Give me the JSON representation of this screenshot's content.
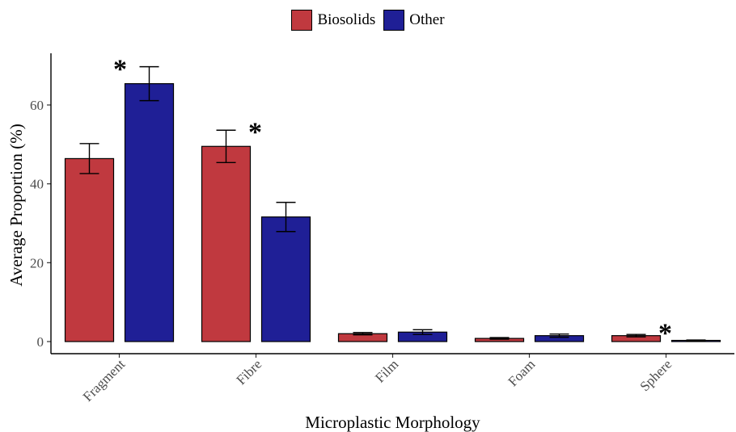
{
  "chart_data": {
    "type": "bar",
    "title": "",
    "xlabel": "Microplastic Morphology",
    "ylabel": "Average Proportion (%)",
    "ylim": [
      0,
      72
    ],
    "yticks": [
      0,
      20,
      40,
      60
    ],
    "grid": false,
    "legend_position": "top-center",
    "categories": [
      "Fragment",
      "Fibre",
      "Film",
      "Foam",
      "Sphere"
    ],
    "series": [
      {
        "name": "Biosolids",
        "color": "#c0393f",
        "values": [
          46.4,
          49.5,
          2.0,
          0.8,
          1.5
        ],
        "error": [
          3.8,
          4.1,
          0.3,
          0.2,
          0.3
        ]
      },
      {
        "name": "Other",
        "color": "#1f1f96",
        "values": [
          65.4,
          31.6,
          2.4,
          1.5,
          0.3
        ],
        "error": [
          4.3,
          3.7,
          0.6,
          0.4,
          0.1
        ]
      }
    ],
    "annotations": [
      {
        "text": "*",
        "category": "Fragment",
        "series": "Other",
        "y": 70.5,
        "side": "left"
      },
      {
        "text": "*",
        "category": "Fibre",
        "series": "Biosolids",
        "y": 54.6,
        "side": "right"
      },
      {
        "text": "*",
        "category": "Sphere",
        "series": "Biosolids",
        "y": 3.6,
        "side": "right"
      }
    ]
  }
}
